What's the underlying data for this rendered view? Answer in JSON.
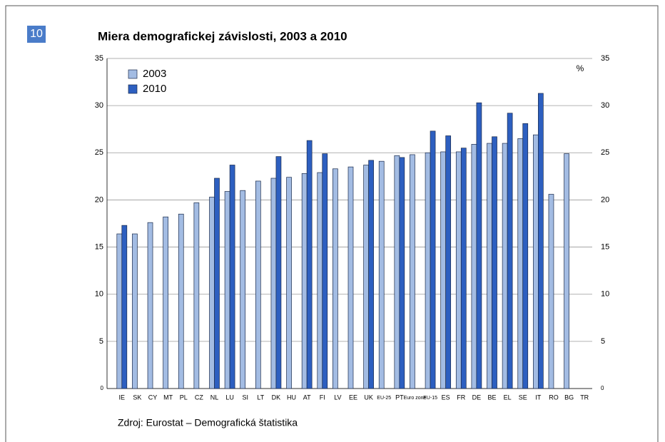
{
  "page_number": "10",
  "source": "Zdroj: Eurostat – Demografická štatistika",
  "chart_data": {
    "type": "bar",
    "title": "Miera demografickej závislosti, 2003 a 2010",
    "unit": "%",
    "categories": [
      "IE",
      "SK",
      "CY",
      "MT",
      "PL",
      "CZ",
      "NL",
      "LU",
      "SI",
      "LT",
      "DK",
      "HU",
      "AT",
      "FI",
      "LV",
      "EE",
      "UK",
      "EU-25",
      "PT",
      "Euro zone",
      "EU-15",
      "ES",
      "FR",
      "DE",
      "BE",
      "EL",
      "SE",
      "IT",
      "RO",
      "BG",
      "TR"
    ],
    "series": [
      {
        "name": "2003",
        "color": "#a3bce3",
        "values": [
          16.4,
          16.4,
          17.6,
          18.2,
          18.5,
          19.7,
          20.3,
          20.9,
          21.0,
          22.0,
          22.3,
          22.4,
          22.8,
          22.9,
          23.3,
          23.5,
          23.7,
          24.1,
          24.7,
          24.8,
          25.0,
          25.1,
          25.1,
          25.9,
          26.0,
          26.0,
          26.5,
          26.9,
          20.6,
          24.9,
          null
        ]
      },
      {
        "name": "2010",
        "color": "#2d5fc0",
        "values": [
          17.3,
          null,
          null,
          null,
          null,
          null,
          22.3,
          23.7,
          null,
          null,
          24.6,
          null,
          26.3,
          24.9,
          null,
          null,
          24.2,
          null,
          24.5,
          null,
          27.3,
          26.8,
          25.5,
          30.3,
          26.7,
          29.2,
          28.1,
          31.3,
          null,
          null,
          null
        ]
      }
    ],
    "ylim": [
      0,
      35
    ],
    "yticks": [
      0,
      5,
      10,
      15,
      20,
      25,
      30,
      35
    ],
    "y2lim": [
      0,
      35
    ],
    "y2ticks": [
      0,
      5,
      10,
      15,
      20,
      25,
      30,
      35
    ],
    "grid": true,
    "legend": "top-left"
  }
}
